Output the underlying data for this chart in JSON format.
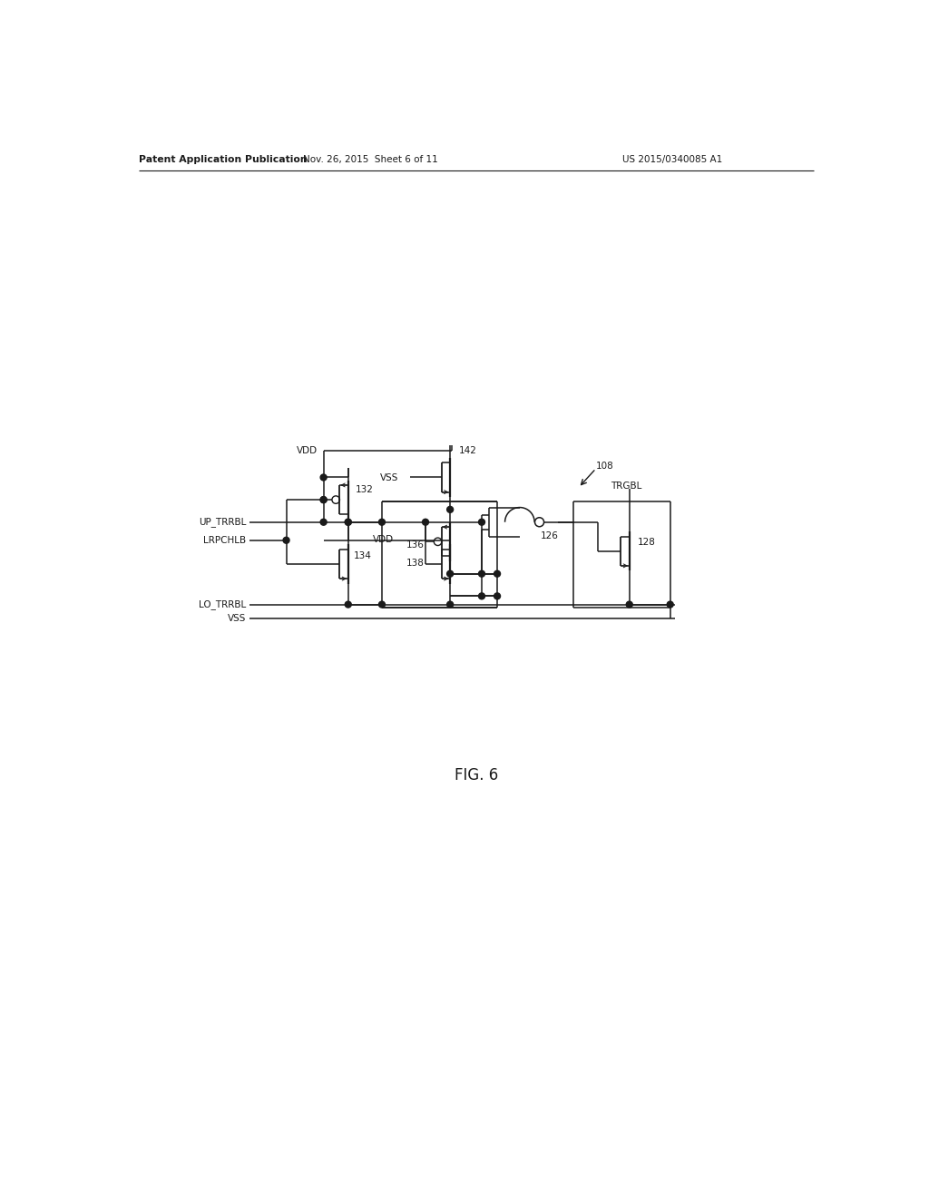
{
  "bg_color": "#ffffff",
  "line_color": "#1a1a1a",
  "lw": 1.1,
  "fig_width": 10.24,
  "fig_height": 13.2,
  "header_left": "Patent Application Publication",
  "header_mid": "Nov. 26, 2015  Sheet 6 of 11",
  "header_right": "US 2015/0340085 A1",
  "fig_label": "FIG. 6"
}
